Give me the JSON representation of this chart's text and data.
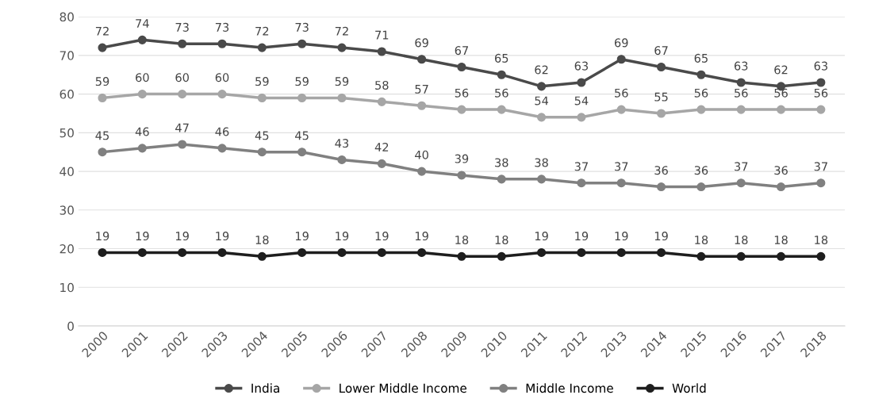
{
  "chart_data": {
    "type": "line",
    "categories": [
      "2000",
      "2001",
      "2002",
      "2003",
      "2004",
      "2005",
      "2006",
      "2007",
      "2008",
      "2009",
      "2010",
      "2011",
      "2012",
      "2013",
      "2014",
      "2015",
      "2016",
      "2017",
      "2018"
    ],
    "series": [
      {
        "name": "India",
        "color": "#4a4a4a",
        "values": [
          72,
          74,
          73,
          73,
          72,
          73,
          72,
          71,
          69,
          67,
          65,
          62,
          63,
          69,
          67,
          65,
          63,
          62,
          63
        ]
      },
      {
        "name": "Lower Middle Income",
        "color": "#a6a6a6",
        "values": [
          59,
          60,
          60,
          60,
          59,
          59,
          59,
          58,
          57,
          56,
          56,
          54,
          54,
          56,
          55,
          56,
          56,
          56,
          56
        ]
      },
      {
        "name": "Middle Income",
        "color": "#808080",
        "values": [
          45,
          46,
          47,
          46,
          45,
          45,
          43,
          42,
          40,
          39,
          38,
          38,
          37,
          37,
          36,
          36,
          37,
          36,
          37
        ]
      },
      {
        "name": "World",
        "color": "#1e1e1e",
        "values": [
          19,
          19,
          19,
          19,
          18,
          19,
          19,
          19,
          19,
          18,
          18,
          19,
          19,
          19,
          19,
          18,
          18,
          18,
          18
        ]
      }
    ],
    "ylim": [
      0,
      80
    ],
    "yticks": [
      0,
      10,
      20,
      30,
      40,
      50,
      60,
      70,
      80
    ],
    "grid": "y",
    "legend": "bottom",
    "marker": "circle",
    "line_style": "solid",
    "data_labels": true
  }
}
